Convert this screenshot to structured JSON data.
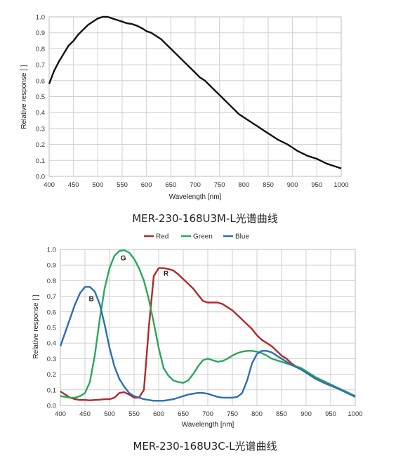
{
  "chart_data": [
    {
      "type": "line",
      "caption": "MER-230-168U3M-L光谱曲线",
      "xlabel": "Wavelength [nm]",
      "ylabel": "Relative response [ ]",
      "xlim": [
        400,
        1000
      ],
      "ylim": [
        0,
        1.0
      ],
      "xticks": [
        "400",
        "450",
        "500",
        "550",
        "600",
        "650",
        "700",
        "750",
        "800",
        "850",
        "900",
        "950",
        "1000"
      ],
      "yticks": [
        "0.0",
        "0.1",
        "0.2",
        "0.3",
        "0.4",
        "0.5",
        "0.6",
        "0.7",
        "0.8",
        "0.9",
        "1.0"
      ],
      "grid": true,
      "series": [
        {
          "color": "#111111",
          "points": [
            [
              400,
              0.58
            ],
            [
              410,
              0.66
            ],
            [
              420,
              0.72
            ],
            [
              430,
              0.77
            ],
            [
              440,
              0.82
            ],
            [
              450,
              0.85
            ],
            [
              460,
              0.89
            ],
            [
              470,
              0.92
            ],
            [
              480,
              0.95
            ],
            [
              490,
              0.97
            ],
            [
              500,
              0.99
            ],
            [
              510,
              1.0
            ],
            [
              520,
              1.0
            ],
            [
              530,
              0.99
            ],
            [
              540,
              0.98
            ],
            [
              550,
              0.97
            ],
            [
              560,
              0.96
            ],
            [
              570,
              0.955
            ],
            [
              580,
              0.945
            ],
            [
              590,
              0.93
            ],
            [
              600,
              0.91
            ],
            [
              610,
              0.9
            ],
            [
              620,
              0.88
            ],
            [
              630,
              0.86
            ],
            [
              640,
              0.83
            ],
            [
              650,
              0.8
            ],
            [
              660,
              0.77
            ],
            [
              670,
              0.74
            ],
            [
              680,
              0.71
            ],
            [
              690,
              0.68
            ],
            [
              700,
              0.65
            ],
            [
              710,
              0.62
            ],
            [
              720,
              0.6
            ],
            [
              730,
              0.57
            ],
            [
              740,
              0.54
            ],
            [
              750,
              0.51
            ],
            [
              760,
              0.48
            ],
            [
              770,
              0.45
            ],
            [
              780,
              0.42
            ],
            [
              790,
              0.39
            ],
            [
              800,
              0.37
            ],
            [
              810,
              0.35
            ],
            [
              820,
              0.33
            ],
            [
              830,
              0.31
            ],
            [
              840,
              0.29
            ],
            [
              850,
              0.27
            ],
            [
              860,
              0.25
            ],
            [
              870,
              0.23
            ],
            [
              880,
              0.215
            ],
            [
              890,
              0.2
            ],
            [
              900,
              0.18
            ],
            [
              910,
              0.16
            ],
            [
              920,
              0.145
            ],
            [
              930,
              0.13
            ],
            [
              940,
              0.12
            ],
            [
              950,
              0.11
            ],
            [
              960,
              0.095
            ],
            [
              970,
              0.08
            ],
            [
              980,
              0.07
            ],
            [
              990,
              0.06
            ],
            [
              1000,
              0.05
            ]
          ]
        }
      ]
    },
    {
      "type": "line",
      "caption": "MER-230-168U3C-L光谱曲线",
      "xlabel": "Wavelength [nm]",
      "ylabel": "Relative response [ ]",
      "xlim": [
        400,
        1000
      ],
      "ylim": [
        0,
        1.0
      ],
      "xticks": [
        "400",
        "450",
        "500",
        "550",
        "600",
        "650",
        "700",
        "750",
        "800",
        "850",
        "900",
        "950",
        "1000"
      ],
      "yticks": [
        "0.0",
        "0.1",
        "0.2",
        "0.3",
        "0.4",
        "0.5",
        "0.6",
        "0.7",
        "0.8",
        "0.9",
        "1.0"
      ],
      "grid": true,
      "legend_position": "top-center",
      "annotations": [
        {
          "text": "B",
          "x": 463,
          "y": 0.67
        },
        {
          "text": "G",
          "x": 528,
          "y": 0.93
        },
        {
          "text": "R",
          "x": 615,
          "y": 0.83
        }
      ],
      "series": [
        {
          "name": "Red",
          "color": "#b22a2a",
          "points": [
            [
              400,
              0.09
            ],
            [
              410,
              0.07
            ],
            [
              420,
              0.05
            ],
            [
              430,
              0.04
            ],
            [
              440,
              0.035
            ],
            [
              450,
              0.035
            ],
            [
              460,
              0.033
            ],
            [
              470,
              0.035
            ],
            [
              480,
              0.037
            ],
            [
              490,
              0.04
            ],
            [
              500,
              0.04
            ],
            [
              510,
              0.05
            ],
            [
              520,
              0.08
            ],
            [
              530,
              0.085
            ],
            [
              540,
              0.07
            ],
            [
              550,
              0.05
            ],
            [
              560,
              0.05
            ],
            [
              570,
              0.1
            ],
            [
              580,
              0.5
            ],
            [
              590,
              0.83
            ],
            [
              600,
              0.88
            ],
            [
              610,
              0.88
            ],
            [
              620,
              0.875
            ],
            [
              630,
              0.865
            ],
            [
              640,
              0.84
            ],
            [
              650,
              0.81
            ],
            [
              660,
              0.78
            ],
            [
              670,
              0.75
            ],
            [
              680,
              0.71
            ],
            [
              690,
              0.67
            ],
            [
              700,
              0.66
            ],
            [
              710,
              0.66
            ],
            [
              720,
              0.66
            ],
            [
              730,
              0.65
            ],
            [
              740,
              0.63
            ],
            [
              750,
              0.61
            ],
            [
              760,
              0.58
            ],
            [
              770,
              0.55
            ],
            [
              780,
              0.52
            ],
            [
              790,
              0.49
            ],
            [
              800,
              0.45
            ],
            [
              810,
              0.42
            ],
            [
              820,
              0.4
            ],
            [
              830,
              0.38
            ],
            [
              840,
              0.35
            ],
            [
              850,
              0.32
            ],
            [
              860,
              0.3
            ],
            [
              870,
              0.27
            ],
            [
              880,
              0.25
            ],
            [
              890,
              0.23
            ],
            [
              900,
              0.21
            ],
            [
              920,
              0.17
            ],
            [
              940,
              0.14
            ],
            [
              960,
              0.115
            ],
            [
              980,
              0.09
            ],
            [
              1000,
              0.06
            ]
          ]
        },
        {
          "name": "Green",
          "color": "#2aa85a",
          "points": [
            [
              400,
              0.06
            ],
            [
              410,
              0.055
            ],
            [
              420,
              0.05
            ],
            [
              430,
              0.05
            ],
            [
              440,
              0.06
            ],
            [
              450,
              0.08
            ],
            [
              460,
              0.15
            ],
            [
              470,
              0.32
            ],
            [
              480,
              0.55
            ],
            [
              490,
              0.75
            ],
            [
              500,
              0.88
            ],
            [
              510,
              0.96
            ],
            [
              520,
              0.99
            ],
            [
              530,
              0.995
            ],
            [
              540,
              0.98
            ],
            [
              550,
              0.94
            ],
            [
              560,
              0.88
            ],
            [
              570,
              0.8
            ],
            [
              580,
              0.68
            ],
            [
              590,
              0.53
            ],
            [
              600,
              0.37
            ],
            [
              610,
              0.24
            ],
            [
              620,
              0.19
            ],
            [
              630,
              0.16
            ],
            [
              640,
              0.15
            ],
            [
              650,
              0.145
            ],
            [
              660,
              0.16
            ],
            [
              670,
              0.2
            ],
            [
              680,
              0.25
            ],
            [
              690,
              0.29
            ],
            [
              700,
              0.3
            ],
            [
              710,
              0.29
            ],
            [
              720,
              0.28
            ],
            [
              730,
              0.285
            ],
            [
              740,
              0.3
            ],
            [
              750,
              0.32
            ],
            [
              760,
              0.335
            ],
            [
              770,
              0.345
            ],
            [
              780,
              0.35
            ],
            [
              790,
              0.35
            ],
            [
              800,
              0.345
            ],
            [
              810,
              0.335
            ],
            [
              820,
              0.32
            ],
            [
              830,
              0.3
            ],
            [
              840,
              0.29
            ],
            [
              850,
              0.28
            ],
            [
              860,
              0.27
            ],
            [
              870,
              0.26
            ],
            [
              880,
              0.25
            ],
            [
              890,
              0.24
            ],
            [
              900,
              0.22
            ],
            [
              920,
              0.18
            ],
            [
              940,
              0.15
            ],
            [
              960,
              0.12
            ],
            [
              980,
              0.09
            ],
            [
              1000,
              0.06
            ]
          ]
        },
        {
          "name": "Blue",
          "color": "#2b70b0",
          "points": [
            [
              400,
              0.38
            ],
            [
              410,
              0.47
            ],
            [
              420,
              0.56
            ],
            [
              430,
              0.65
            ],
            [
              440,
              0.72
            ],
            [
              450,
              0.76
            ],
            [
              460,
              0.76
            ],
            [
              470,
              0.73
            ],
            [
              480,
              0.65
            ],
            [
              490,
              0.52
            ],
            [
              500,
              0.37
            ],
            [
              510,
              0.25
            ],
            [
              520,
              0.17
            ],
            [
              530,
              0.12
            ],
            [
              540,
              0.08
            ],
            [
              550,
              0.06
            ],
            [
              560,
              0.05
            ],
            [
              570,
              0.04
            ],
            [
              580,
              0.035
            ],
            [
              590,
              0.03
            ],
            [
              600,
              0.03
            ],
            [
              610,
              0.03
            ],
            [
              620,
              0.035
            ],
            [
              630,
              0.04
            ],
            [
              640,
              0.05
            ],
            [
              650,
              0.06
            ],
            [
              660,
              0.07
            ],
            [
              670,
              0.075
            ],
            [
              680,
              0.08
            ],
            [
              690,
              0.08
            ],
            [
              700,
              0.075
            ],
            [
              710,
              0.065
            ],
            [
              720,
              0.055
            ],
            [
              730,
              0.05
            ],
            [
              740,
              0.05
            ],
            [
              750,
              0.05
            ],
            [
              760,
              0.055
            ],
            [
              770,
              0.08
            ],
            [
              780,
              0.16
            ],
            [
              790,
              0.27
            ],
            [
              800,
              0.33
            ],
            [
              810,
              0.35
            ],
            [
              820,
              0.35
            ],
            [
              830,
              0.34
            ],
            [
              840,
              0.32
            ],
            [
              850,
              0.3
            ],
            [
              860,
              0.28
            ],
            [
              870,
              0.26
            ],
            [
              880,
              0.245
            ],
            [
              890,
              0.23
            ],
            [
              900,
              0.21
            ],
            [
              920,
              0.17
            ],
            [
              940,
              0.14
            ],
            [
              960,
              0.115
            ],
            [
              980,
              0.085
            ],
            [
              1000,
              0.055
            ]
          ]
        }
      ]
    }
  ]
}
